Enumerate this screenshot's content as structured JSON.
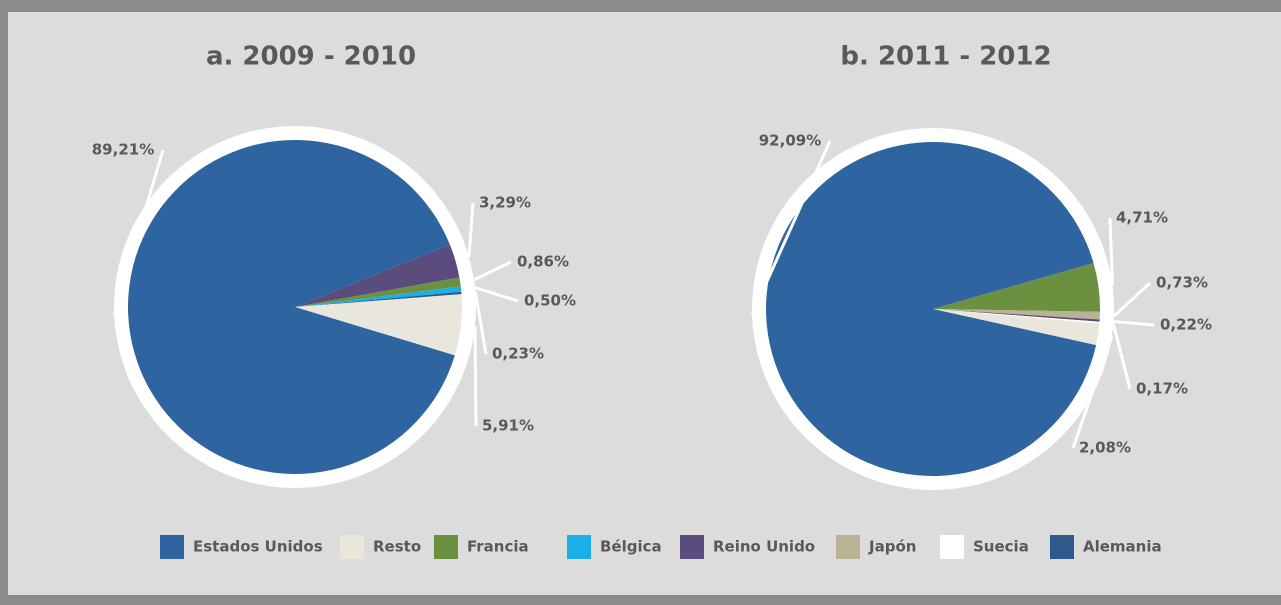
{
  "legend": [
    {
      "name": "Estados Unidos",
      "color": "#2e64a0"
    },
    {
      "name": "Resto",
      "color": "#e9e7dd"
    },
    {
      "name": "Francia",
      "color": "#6b9140"
    },
    {
      "name": "Bélgica",
      "color": "#1aafe6"
    },
    {
      "name": "Reino Unido",
      "color": "#5a4c7d"
    },
    {
      "name": "Japón",
      "color": "#b8b394"
    },
    {
      "name": "Suecia",
      "color": "#ffffff"
    },
    {
      "name": "Alemania",
      "color": "#2d5a8a"
    }
  ],
  "chart_data": [
    {
      "type": "pie",
      "title": "a. 2009 - 2010",
      "categories": [
        "Reino Unido",
        "Francia",
        "Bélgica",
        "Alemania",
        "Resto",
        "Estados Unidos"
      ],
      "values": [
        3.29,
        0.86,
        0.5,
        0.23,
        5.91,
        89.21
      ],
      "value_labels": [
        "3,29%",
        "0,86%",
        "0,50%",
        "0,23%",
        "5,91%",
        "89,21%"
      ]
    },
    {
      "type": "pie",
      "title": "b. 2011 - 2012",
      "categories": [
        "Francia",
        "Japón",
        "Reino Unido",
        "Suecia",
        "Resto",
        "Estados Unidos"
      ],
      "values": [
        4.71,
        0.73,
        0.22,
        0.17,
        2.08,
        92.09
      ],
      "value_labels": [
        "4,71%",
        "0,73%",
        "0,22%",
        "0,17%",
        "2,08%",
        "92,09%"
      ]
    }
  ]
}
